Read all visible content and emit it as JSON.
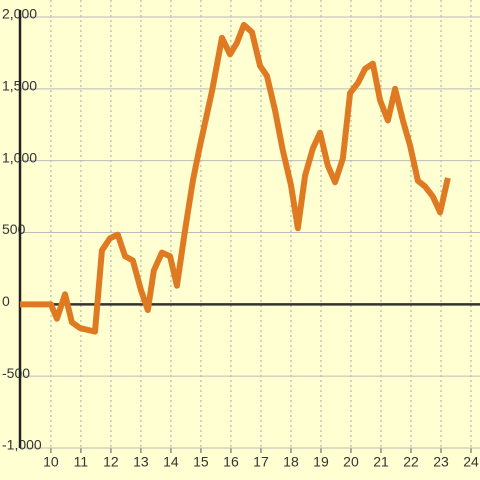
{
  "chart_data": {
    "type": "line",
    "x": [
      8.97,
      10.0,
      10.2,
      10.47,
      10.7,
      10.97,
      11.47,
      11.7,
      11.97,
      12.23,
      12.47,
      12.73,
      13.0,
      13.23,
      13.43,
      13.7,
      13.97,
      14.2,
      14.47,
      14.73,
      14.97,
      15.37,
      15.7,
      15.97,
      16.2,
      16.43,
      16.7,
      16.97,
      17.2,
      17.47,
      17.73,
      18.0,
      18.23,
      18.47,
      18.73,
      18.97,
      19.23,
      19.47,
      19.73,
      19.97,
      20.23,
      20.47,
      20.73,
      20.97,
      21.23,
      21.47,
      21.73,
      21.97,
      22.23,
      22.47,
      22.73,
      22.97,
      23.23
    ],
    "series": [
      {
        "color": "#e07a22",
        "values": [
          0,
          0,
          -100,
          70,
          -125,
          -165,
          -190,
          375,
          460,
          485,
          335,
          305,
          100,
          -40,
          235,
          360,
          335,
          130,
          515,
          860,
          1105,
          1485,
          1855,
          1740,
          1820,
          1945,
          1895,
          1660,
          1590,
          1350,
          1070,
          830,
          530,
          895,
          1085,
          1195,
          965,
          850,
          1015,
          1470,
          1540,
          1640,
          1675,
          1420,
          1280,
          1500,
          1280,
          1105,
          860,
          820,
          750,
          640,
          880
        ]
      }
    ],
    "xlim": [
      8.97,
      24.3
    ],
    "xticks": [
      10,
      11,
      12,
      13,
      14,
      15,
      16,
      17,
      18,
      19,
      20,
      21,
      22,
      23,
      24
    ],
    "ylim": [
      -1000,
      2000
    ],
    "yticks": [
      {
        "value": -1000,
        "label": "-1,000"
      },
      -500,
      0,
      500,
      {
        "value": 1000,
        "label": "1,000"
      },
      {
        "value": 1500,
        "label": "1,500"
      },
      {
        "value": 2000,
        "label": "2,000"
      }
    ],
    "grid": true
  }
}
